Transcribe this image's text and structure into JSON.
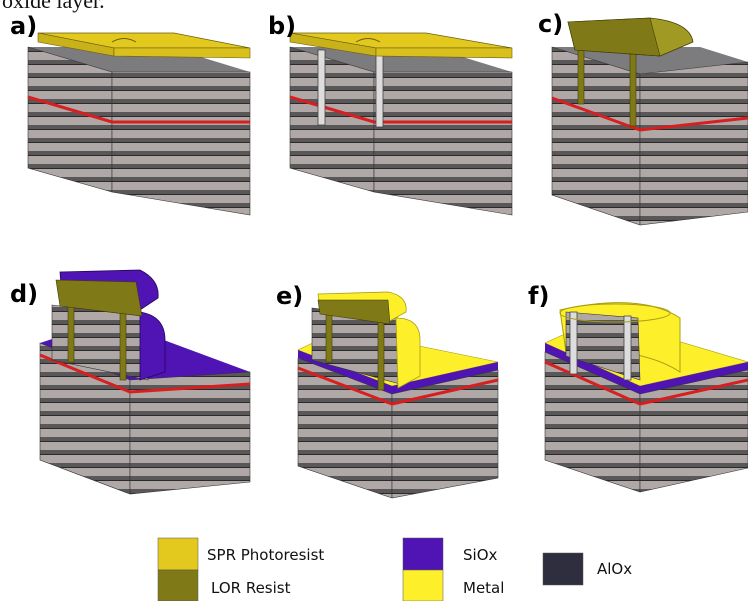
{
  "caption_fragment": "oxide layer.",
  "panels": [
    {
      "label": "a)"
    },
    {
      "label": "b)"
    },
    {
      "label": "c)"
    },
    {
      "label": "d)"
    },
    {
      "label": "e)"
    },
    {
      "label": "f)"
    }
  ],
  "legend": [
    {
      "label": "SPR Photoresist",
      "color": "#e3c81e"
    },
    {
      "label": "LOR Resist",
      "color": "#7f7a17"
    },
    {
      "label": "SiOx",
      "color": "#4f14b3"
    },
    {
      "label": "Metal",
      "color": "#fdf02a"
    },
    {
      "label": "AlOx",
      "color": "#2f2e3e"
    }
  ],
  "colors": {
    "layer_light": "#b0a7a7",
    "layer_dark": "#5a5758",
    "active_region": "#d81f1f",
    "top_gray": "#7c7b7d"
  }
}
